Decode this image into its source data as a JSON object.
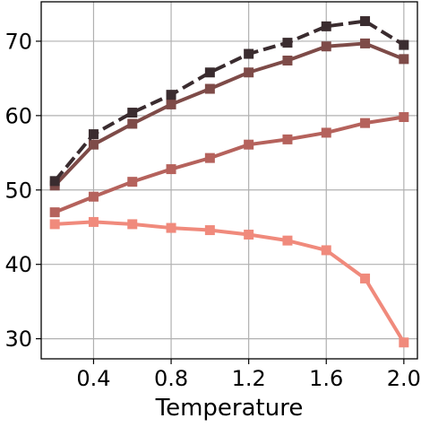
{
  "chart_data": {
    "type": "line",
    "title": "",
    "xlabel": "Temperature",
    "ylabel": "",
    "x": [
      0.2,
      0.4,
      0.6,
      0.8,
      1.0,
      1.2,
      1.4,
      1.6,
      1.8,
      2.0
    ],
    "xlim": [
      0.13,
      2.07
    ],
    "ylim": [
      27.3,
      75.3
    ],
    "xticks": [
      0.4,
      0.8,
      1.2,
      1.6,
      2.0
    ],
    "xtick_labels": [
      "0.4",
      "0.8",
      "1.2",
      "1.6",
      "2.0"
    ],
    "yticks": [
      30,
      40,
      50,
      60,
      70
    ],
    "ytick_labels": [
      "30",
      "40",
      "50",
      "60",
      "70"
    ],
    "grid": true,
    "legend": "none",
    "series": [
      {
        "color": "#f08a7c",
        "style": "solid",
        "marker": "square",
        "values": [
          45.4,
          45.7,
          45.4,
          44.9,
          44.6,
          44.0,
          43.2,
          41.9,
          38.1,
          29.5
        ]
      },
      {
        "color": "#b5625c",
        "style": "solid",
        "marker": "square",
        "values": [
          47.0,
          49.1,
          51.1,
          52.8,
          54.3,
          56.1,
          56.8,
          57.7,
          59.0,
          59.8
        ]
      },
      {
        "color": "#7e4b48",
        "style": "solid",
        "marker": "square",
        "values": [
          50.6,
          56.1,
          58.9,
          61.5,
          63.6,
          65.8,
          67.4,
          69.3,
          69.7,
          67.6
        ]
      },
      {
        "color": "#3a2c2f",
        "style": "dashed",
        "marker": "square",
        "values": [
          51.2,
          57.5,
          60.4,
          62.8,
          65.8,
          68.3,
          69.8,
          72.0,
          72.7,
          69.5
        ]
      }
    ]
  }
}
